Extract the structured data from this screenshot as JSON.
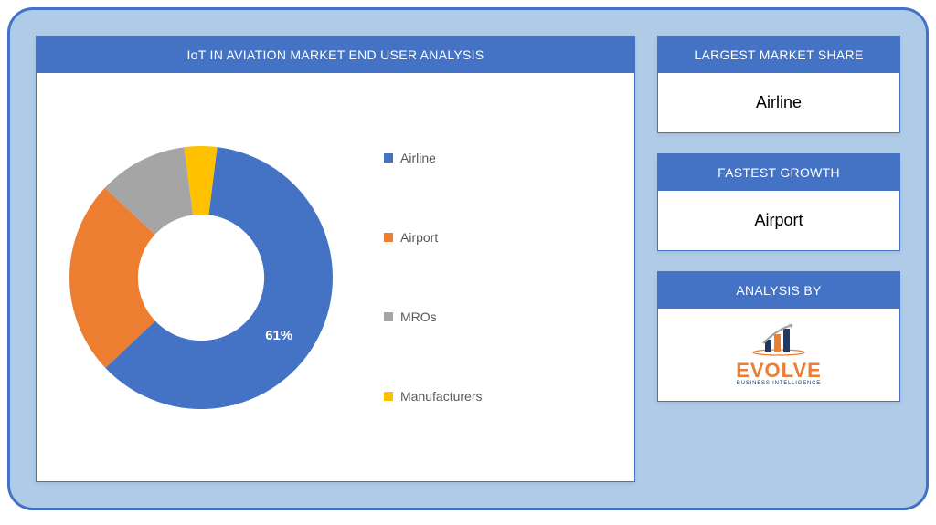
{
  "background": {
    "panel_bg": "#b0cbe7",
    "panel_border": "#4472c4",
    "panel_radius": 28
  },
  "chart": {
    "title": "IoT IN AVIATION MARKET END USER ANALYSIS",
    "type": "donut",
    "header_bg": "#4472c4",
    "header_color": "#ffffff",
    "inner_radius_ratio": 0.48,
    "slices": [
      {
        "name": "Airline",
        "value": 61,
        "color": "#4472c4",
        "label": "61%",
        "label_show": true
      },
      {
        "name": "Airport",
        "value": 24,
        "color": "#ed7d31",
        "label": "",
        "label_show": false
      },
      {
        "name": "MROs",
        "value": 11,
        "color": "#a5a5a5",
        "label": "",
        "label_show": false
      },
      {
        "name": "Manufacturers",
        "value": 4,
        "color": "#ffc000",
        "label": "",
        "label_show": false
      }
    ],
    "legend_text_color": "#595959",
    "slice_label_color": "#ffffff",
    "slice_label_fontsize": 15
  },
  "cards": {
    "market_share": {
      "header": "LARGEST MARKET SHARE",
      "value": "Airline"
    },
    "fastest": {
      "header": "FASTEST GROWTH",
      "value": "Airport"
    },
    "analysis": {
      "header": "ANALYSIS BY",
      "brand": "EVOLVE",
      "sub": "BUSINESS INTELLIGENCE",
      "brand_color": "#ed7d31",
      "sub_color": "#203864"
    }
  }
}
